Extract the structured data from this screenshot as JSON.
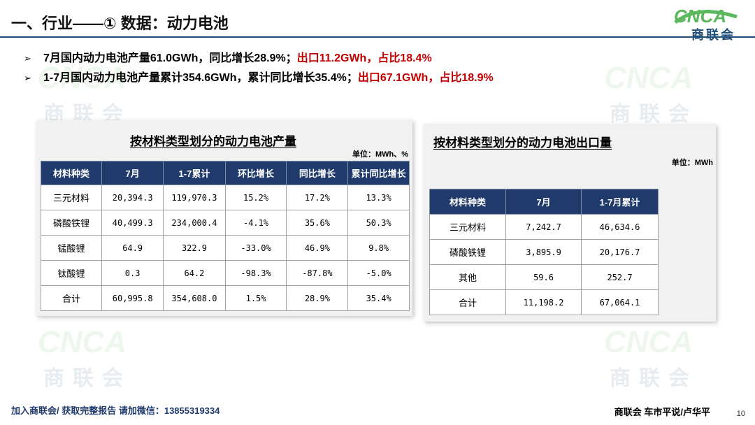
{
  "page": {
    "title": "一、行业——① 数据：动力电池",
    "page_number": "10"
  },
  "logo": {
    "mark": "CNCA",
    "text": "商联会"
  },
  "watermark": {
    "mark": "CNCA",
    "text": "商联会"
  },
  "bullets": [
    {
      "black": "7月国内动力电池产量61.0GWh，同比增长28.9%；",
      "red": "出口11.2GWh，占比18.4%"
    },
    {
      "black": "1-7月国内动力电池产量累计354.6GWh，累计同比增长35.4%；",
      "red": "出口67.1GWh，占比18.9%"
    }
  ],
  "production_table": {
    "title": "按材料类型划分的动力电池产量",
    "unit": "单位：MWh、%",
    "headers": [
      "材料种类",
      "7月",
      "1-7累计",
      "环比增长",
      "同比增长",
      "累计同比增长"
    ],
    "rows": [
      [
        "三元材料",
        "20,394.3",
        "119,970.3",
        "15.2%",
        "17.2%",
        "13.3%"
      ],
      [
        "磷酸铁锂",
        "40,499.3",
        "234,000.4",
        "-4.1%",
        "35.6%",
        "50.3%"
      ],
      [
        "锰酸锂",
        "64.9",
        "322.9",
        "-33.0%",
        "46.9%",
        "9.8%"
      ],
      [
        "钛酸锂",
        "0.3",
        "64.2",
        "-98.3%",
        "-87.8%",
        "-5.0%"
      ],
      [
        "合计",
        "60,995.8",
        "354,608.0",
        "1.5%",
        "28.9%",
        "35.4%"
      ]
    ]
  },
  "export_table": {
    "title": "按材料类型划分的动力电池出口量",
    "unit": "单位：MWh",
    "headers": [
      "材料种类",
      "7月",
      "1-7月累计"
    ],
    "rows": [
      [
        "三元材料",
        "7,242.7",
        "46,634.6"
      ],
      [
        "磷酸铁锂",
        "3,895.9",
        "20,176.7"
      ],
      [
        "其他",
        "59.6",
        "252.7"
      ],
      [
        "合计",
        "11,198.2",
        "67,064.1"
      ]
    ]
  },
  "footer": {
    "left": "加入商联会/ 获取完整报告  请加微信：13855319334",
    "right": "商联会  车市平说/卢华平"
  },
  "colors": {
    "header_bg": "#1f3a6b",
    "accent_red": "#c00000",
    "logo_green": "#5cb85c",
    "logo_blue": "#1f4e79"
  }
}
